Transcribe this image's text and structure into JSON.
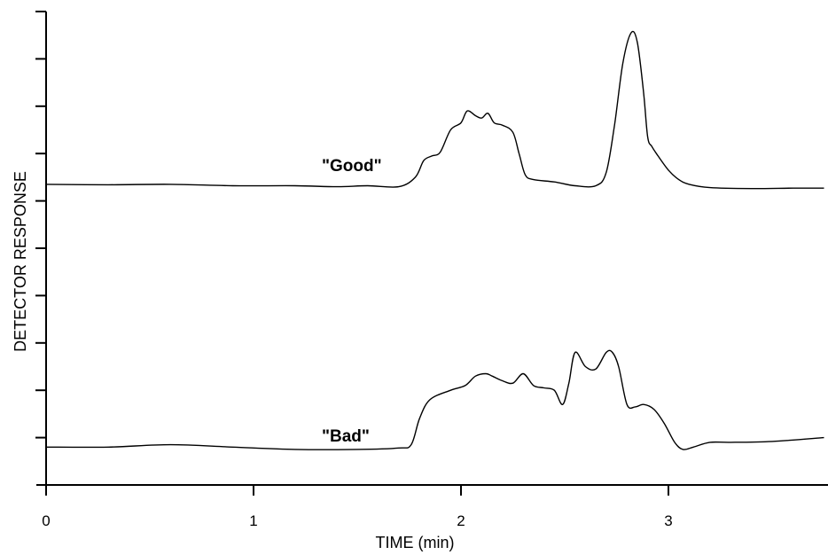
{
  "chart_data": {
    "type": "line",
    "title": "",
    "xlabel": "TIME (min)",
    "ylabel": "DETECTOR RESPONSE",
    "xlim": [
      0,
      3.75
    ],
    "ylim": [
      0,
      10
    ],
    "x_ticks": [
      0,
      1,
      2,
      3
    ],
    "x_tick_labels": [
      "0",
      "1",
      "2",
      "3"
    ],
    "y_ticks": [
      1,
      2,
      3,
      4,
      5,
      6,
      7,
      8,
      9,
      10
    ],
    "y_tick_labels_shown": false,
    "grid": false,
    "legend": "none",
    "line_color": "#000000",
    "series": [
      {
        "label": "\"Good\"",
        "x": [
          0,
          0.3,
          0.6,
          0.9,
          1.2,
          1.4,
          1.55,
          1.7,
          1.78,
          1.82,
          1.86,
          1.9,
          1.95,
          2.0,
          2.03,
          2.07,
          2.1,
          2.13,
          2.16,
          2.2,
          2.25,
          2.28,
          2.31,
          2.35,
          2.45,
          2.55,
          2.65,
          2.7,
          2.74,
          2.78,
          2.82,
          2.85,
          2.88,
          2.9,
          2.92,
          2.95,
          3.0,
          3.05,
          3.1,
          3.2,
          3.4,
          3.6,
          3.75
        ],
        "y": [
          6.35,
          6.34,
          6.35,
          6.32,
          6.32,
          6.3,
          6.32,
          6.3,
          6.5,
          6.85,
          6.95,
          7.03,
          7.5,
          7.65,
          7.9,
          7.8,
          7.75,
          7.85,
          7.65,
          7.6,
          7.45,
          7.0,
          6.55,
          6.45,
          6.4,
          6.32,
          6.32,
          6.6,
          7.6,
          8.9,
          9.55,
          9.35,
          8.3,
          7.35,
          7.15,
          6.95,
          6.65,
          6.45,
          6.35,
          6.28,
          6.26,
          6.27,
          6.27
        ]
      },
      {
        "label": "\"Bad\"",
        "x": [
          0,
          0.3,
          0.6,
          0.9,
          1.2,
          1.5,
          1.7,
          1.76,
          1.8,
          1.85,
          1.95,
          2.02,
          2.07,
          2.12,
          2.15,
          2.2,
          2.25,
          2.3,
          2.35,
          2.4,
          2.45,
          2.49,
          2.52,
          2.55,
          2.6,
          2.65,
          2.7,
          2.73,
          2.76,
          2.8,
          2.84,
          2.88,
          2.93,
          2.98,
          3.03,
          3.07,
          3.12,
          3.2,
          3.3,
          3.5,
          3.75
        ],
        "y": [
          0.8,
          0.8,
          0.85,
          0.8,
          0.75,
          0.75,
          0.78,
          0.85,
          1.4,
          1.8,
          2.0,
          2.1,
          2.3,
          2.35,
          2.3,
          2.2,
          2.15,
          2.35,
          2.1,
          2.05,
          2.0,
          1.7,
          2.15,
          2.8,
          2.5,
          2.45,
          2.8,
          2.8,
          2.5,
          1.7,
          1.65,
          1.7,
          1.6,
          1.3,
          0.9,
          0.75,
          0.8,
          0.9,
          0.9,
          0.92,
          1.0
        ]
      }
    ]
  }
}
